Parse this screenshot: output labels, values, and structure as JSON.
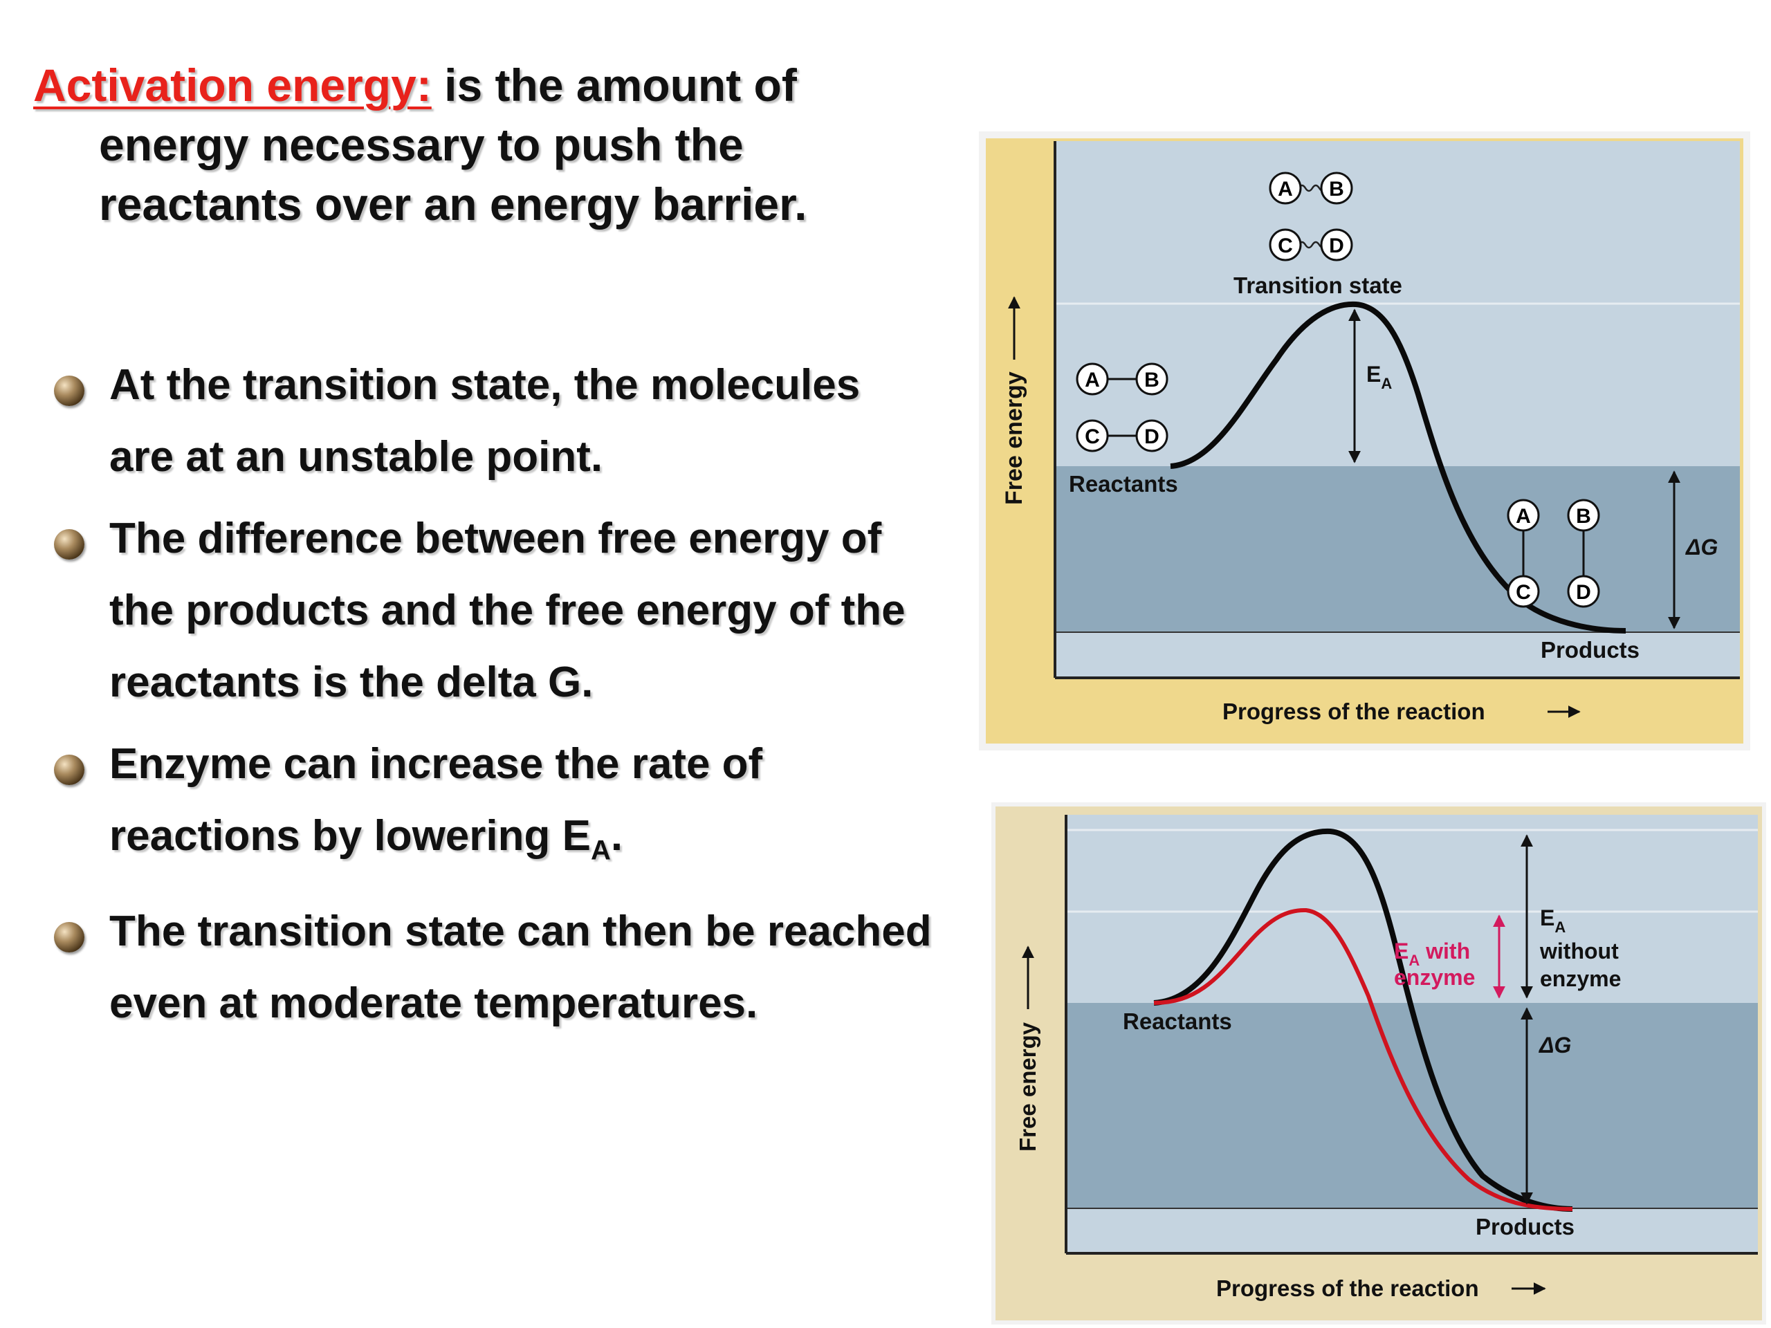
{
  "definition": {
    "term": "Activation energy:",
    "rest": "is the amount of energy necessary to push the reactants over an energy barrier."
  },
  "bullets": [
    {
      "lead": "",
      "text": "At the transition state, the molecules are at an unstable point."
    },
    {
      "lead": "",
      "text": "The difference between free energy of the products and the free energy of the reactants is the delta G."
    },
    {
      "lead": "Enzyme",
      "text": "can increase the rate of reactions by lowering E",
      "sub": "A",
      "tail": "."
    },
    {
      "lead": "",
      "text": "The transition state can then be reached even at moderate temperatures."
    }
  ],
  "diagram1": {
    "y_axis_label": "Free energy",
    "x_axis_label": "Progress of the reaction",
    "transition_state_label": "Transition state",
    "reactants_label": "Reactants",
    "products_label": "Products",
    "ea_label": "E",
    "ea_sub": "A",
    "dg_label": "ΔG",
    "molecules": [
      "A",
      "B",
      "C",
      "D"
    ]
  },
  "diagram2": {
    "y_axis_label": "Free energy",
    "x_axis_label": "Progress of the reaction",
    "reactants_label": "Reactants",
    "products_label": "Products",
    "ea_with_enzyme_line1": "E",
    "ea_with_enzyme_sub": "A",
    "ea_with_enzyme_line1_rest": " with",
    "ea_with_enzyme_line2": "enzyme",
    "ea_without_line1": "E",
    "ea_without_sub": "A",
    "ea_without_line2": "without",
    "ea_without_line3": "enzyme",
    "dg_label": "ΔG"
  },
  "colors": {
    "term": "#e8221b",
    "panel1_border": "#efd88c",
    "panel2_border": "#e9dcb4",
    "upper_band": "#c5d4e0",
    "lower_band": "#8fa9bb",
    "enzyme_curve": "#d0131f",
    "enzyme_label": "#d31a5e"
  }
}
